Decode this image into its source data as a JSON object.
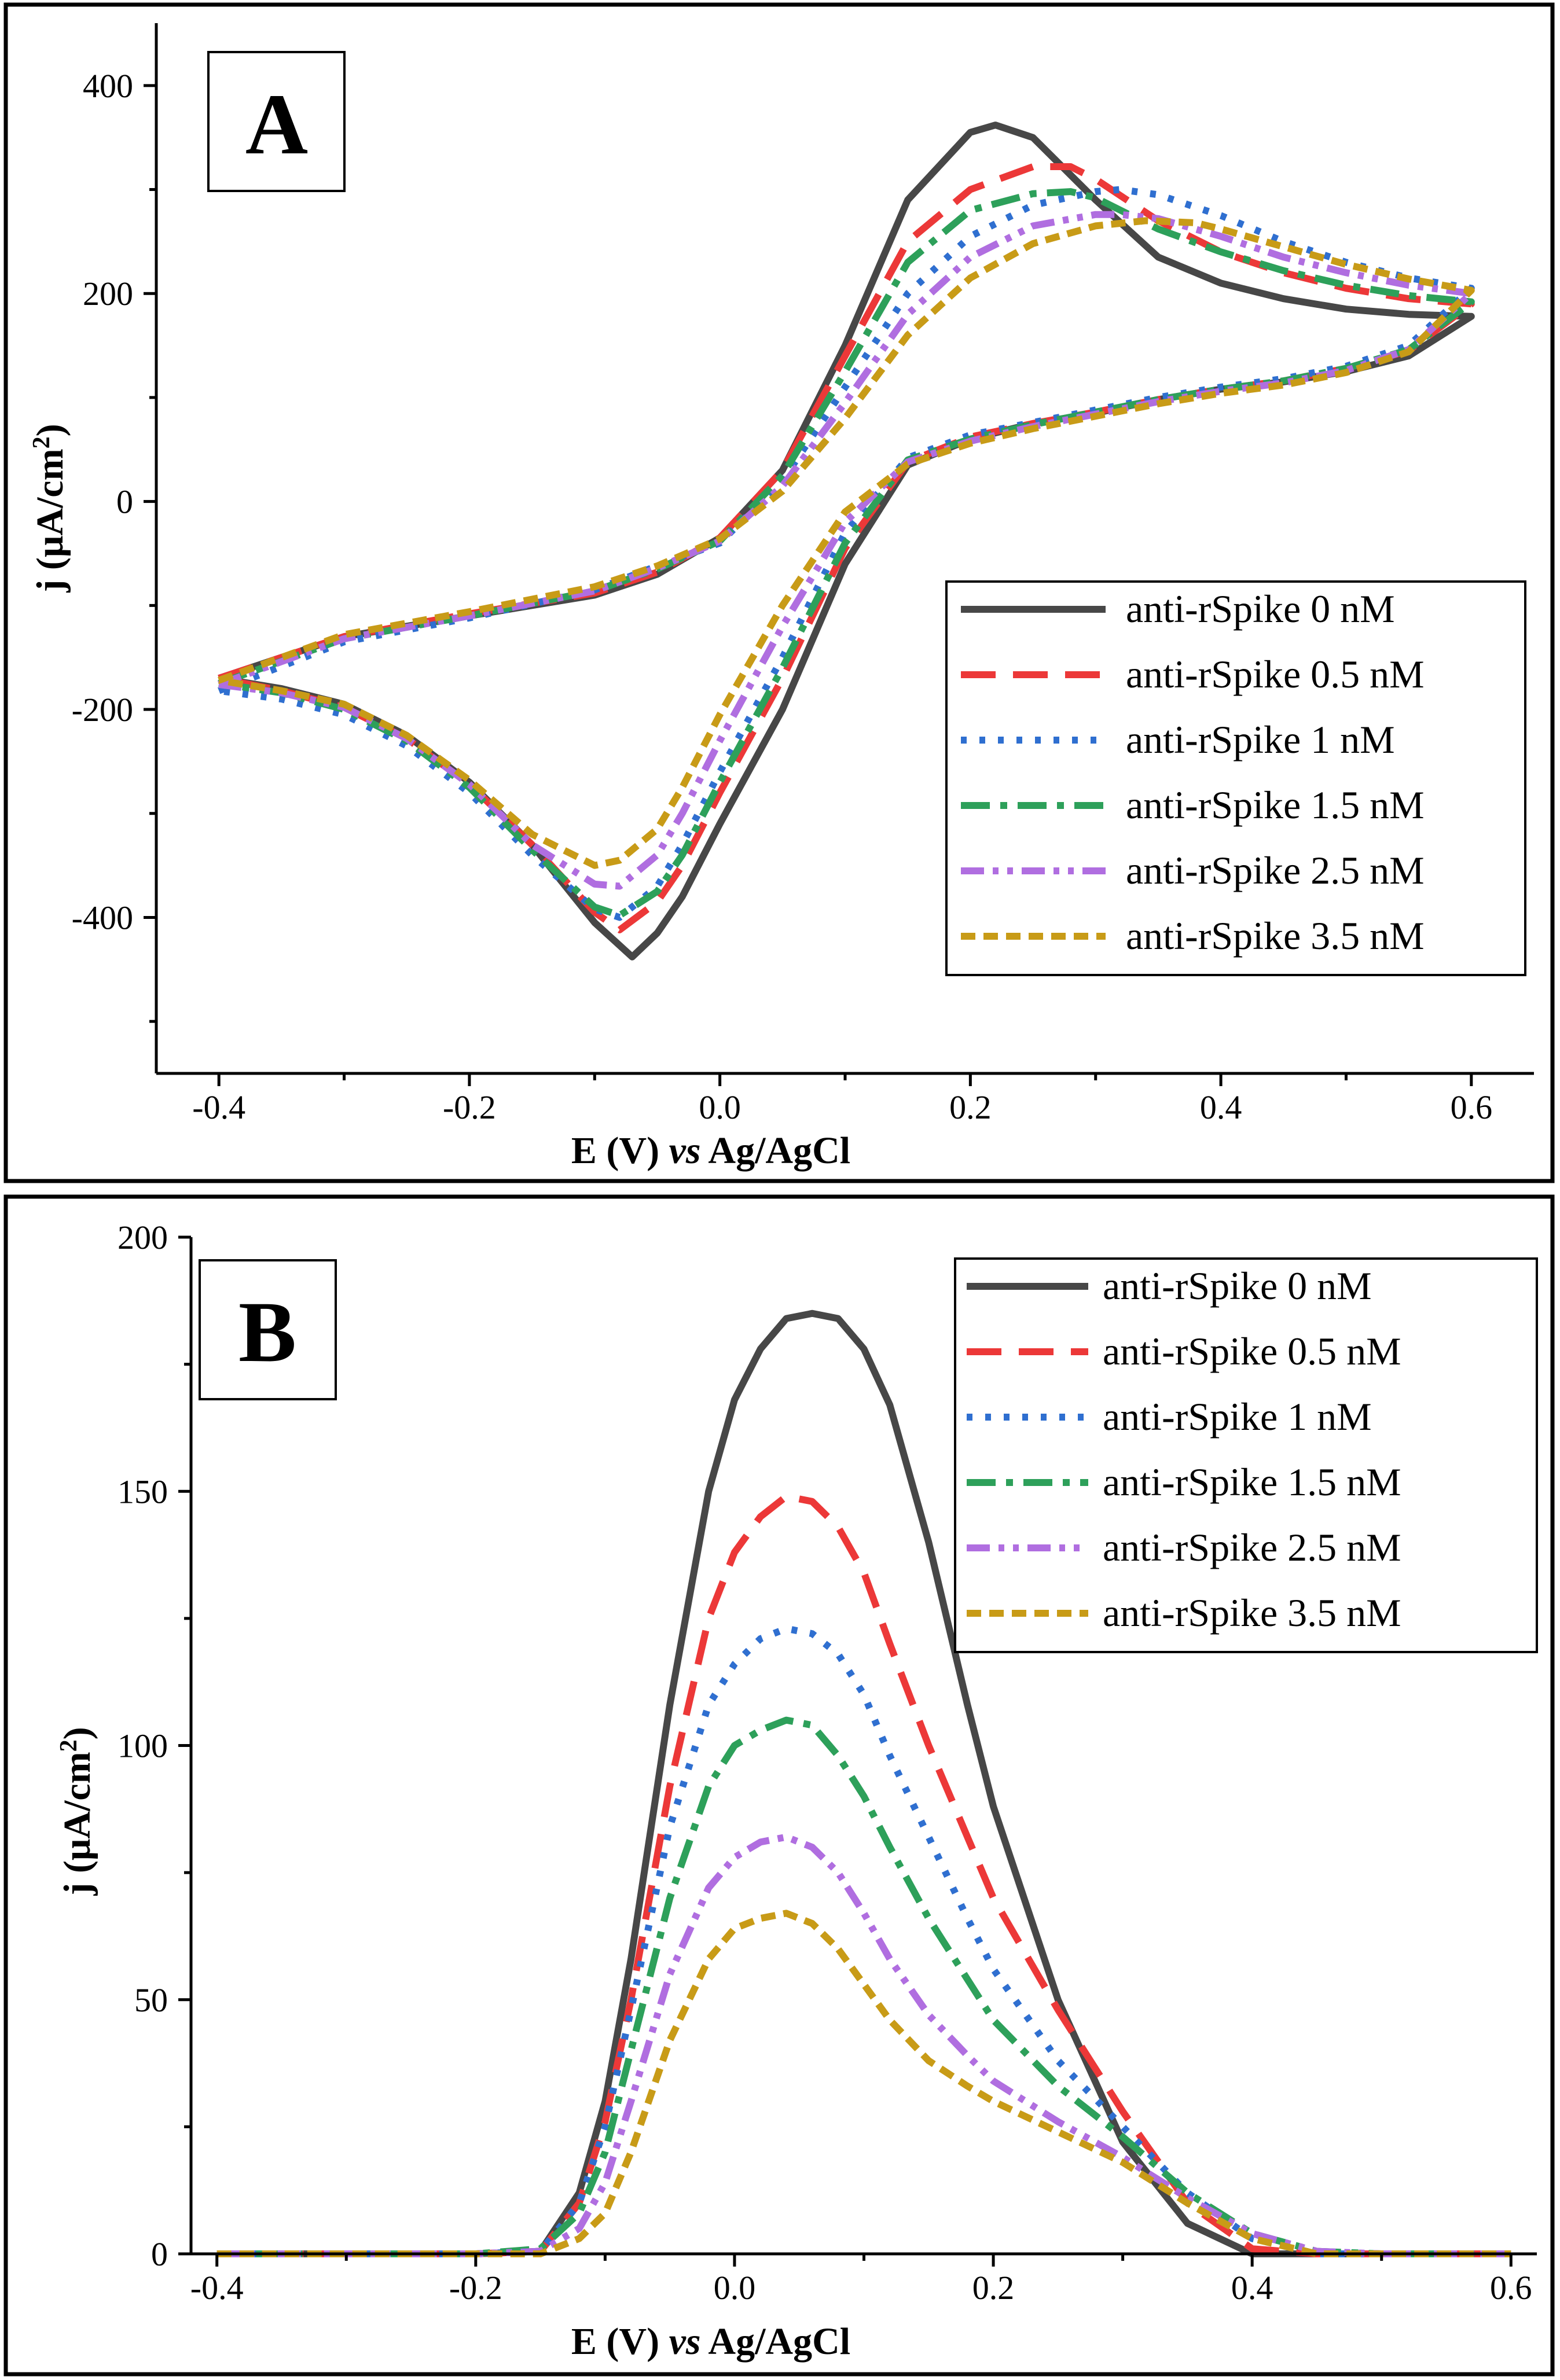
{
  "chart_data": [
    {
      "type": "line",
      "panel_label": "A",
      "xlabel_parts": [
        "E (V) ",
        "vs",
        " Ag/AgCl"
      ],
      "ylabel_parts": [
        "j (μA/cm",
        "2",
        ")"
      ],
      "xlim": [
        -0.45,
        0.65
      ],
      "ylim": [
        -550,
        460
      ],
      "xticks": [
        -0.4,
        -0.2,
        0.0,
        0.2,
        0.4,
        0.6
      ],
      "xtick_labels": [
        "-0.4",
        "-0.2",
        "0.0",
        "0.2",
        "0.4",
        "0.6"
      ],
      "yticks": [
        -400,
        -200,
        0,
        200,
        400
      ],
      "ytick_labels": [
        "-400",
        "-200",
        "0",
        "200",
        "400"
      ],
      "legend_position": "right",
      "series": [
        {
          "name": "anti-rSpike 0 nM",
          "color": "#474747",
          "dash": "solid",
          "x": [
            -0.4,
            -0.3,
            -0.2,
            -0.1,
            -0.05,
            0.0,
            0.05,
            0.1,
            0.15,
            0.2,
            0.22,
            0.25,
            0.3,
            0.35,
            0.4,
            0.45,
            0.5,
            0.55,
            0.6,
            0.6,
            0.55,
            0.5,
            0.45,
            0.4,
            0.35,
            0.3,
            0.25,
            0.2,
            0.15,
            0.1,
            0.05,
            0.0,
            -0.03,
            -0.05,
            -0.07,
            -0.1,
            -0.15,
            -0.2,
            -0.25,
            -0.3,
            -0.35,
            -0.4
          ],
          "y": [
            -170,
            -130,
            -110,
            -90,
            -70,
            -35,
            30,
            150,
            290,
            355,
            362,
            350,
            290,
            235,
            210,
            195,
            185,
            180,
            178,
            178,
            140,
            125,
            115,
            108,
            98,
            85,
            75,
            60,
            35,
            -60,
            -200,
            -310,
            -380,
            -415,
            -438,
            -405,
            -330,
            -270,
            -225,
            -195,
            -180,
            -170
          ]
        },
        {
          "name": "anti-rSpike 0.5 nM",
          "color": "#ec3838",
          "dash": "60,30",
          "x": [
            -0.4,
            -0.3,
            -0.2,
            -0.1,
            -0.05,
            0.0,
            0.05,
            0.1,
            0.15,
            0.2,
            0.25,
            0.28,
            0.3,
            0.35,
            0.4,
            0.45,
            0.5,
            0.55,
            0.6,
            0.6,
            0.55,
            0.5,
            0.45,
            0.4,
            0.35,
            0.3,
            0.25,
            0.2,
            0.15,
            0.1,
            0.05,
            0.0,
            -0.03,
            -0.05,
            -0.08,
            -0.1,
            -0.15,
            -0.2,
            -0.25,
            -0.3,
            -0.35,
            -0.4
          ],
          "y": [
            -170,
            -130,
            -108,
            -88,
            -68,
            -35,
            30,
            140,
            250,
            300,
            322,
            322,
            310,
            270,
            240,
            220,
            205,
            195,
            190,
            190,
            145,
            128,
            116,
            108,
            98,
            86,
            75,
            62,
            38,
            -45,
            -170,
            -280,
            -350,
            -385,
            -412,
            -395,
            -330,
            -272,
            -228,
            -198,
            -182,
            -170
          ]
        },
        {
          "name": "anti-rSpike 1 nM",
          "color": "#2f6fd0",
          "dash": "10,22",
          "x": [
            -0.4,
            -0.3,
            -0.2,
            -0.1,
            -0.05,
            0.0,
            0.05,
            0.1,
            0.15,
            0.2,
            0.25,
            0.3,
            0.32,
            0.35,
            0.4,
            0.45,
            0.5,
            0.55,
            0.6,
            0.6,
            0.55,
            0.5,
            0.45,
            0.4,
            0.35,
            0.3,
            0.25,
            0.2,
            0.15,
            0.1,
            0.05,
            0.0,
            -0.03,
            -0.05,
            -0.08,
            -0.1,
            -0.15,
            -0.2,
            -0.25,
            -0.3,
            -0.35,
            -0.4
          ],
          "y": [
            -182,
            -135,
            -112,
            -85,
            -62,
            -40,
            20,
            110,
            200,
            255,
            285,
            298,
            300,
            295,
            275,
            250,
            230,
            215,
            205,
            205,
            150,
            130,
            118,
            110,
            100,
            88,
            76,
            64,
            42,
            -30,
            -150,
            -260,
            -330,
            -370,
            -400,
            -392,
            -340,
            -280,
            -235,
            -205,
            -190,
            -182
          ]
        },
        {
          "name": "anti-rSpike 1.5 nM",
          "color": "#2da05a",
          "dash": "50,18,12,18",
          "x": [
            -0.4,
            -0.3,
            -0.2,
            -0.1,
            -0.05,
            0.0,
            0.05,
            0.1,
            0.15,
            0.2,
            0.25,
            0.28,
            0.3,
            0.35,
            0.4,
            0.45,
            0.5,
            0.55,
            0.6,
            0.6,
            0.55,
            0.5,
            0.45,
            0.4,
            0.35,
            0.3,
            0.25,
            0.2,
            0.15,
            0.1,
            0.05,
            0.0,
            -0.03,
            -0.05,
            -0.08,
            -0.1,
            -0.15,
            -0.2,
            -0.25,
            -0.3,
            -0.35,
            -0.4
          ],
          "y": [
            -175,
            -132,
            -110,
            -86,
            -65,
            -38,
            25,
            125,
            230,
            280,
            296,
            298,
            292,
            262,
            240,
            222,
            208,
            198,
            192,
            192,
            146,
            128,
            116,
            108,
            98,
            86,
            74,
            60,
            40,
            -40,
            -160,
            -270,
            -340,
            -375,
            -398,
            -390,
            -335,
            -275,
            -230,
            -200,
            -184,
            -175
          ]
        },
        {
          "name": "anti-rSpike 2.5 nM",
          "color": "#b06ee0",
          "dash": "40,15,10,15,10,15",
          "x": [
            -0.4,
            -0.3,
            -0.2,
            -0.1,
            -0.05,
            0.0,
            0.05,
            0.1,
            0.15,
            0.2,
            0.25,
            0.3,
            0.32,
            0.35,
            0.4,
            0.45,
            0.5,
            0.55,
            0.6,
            0.6,
            0.55,
            0.5,
            0.45,
            0.4,
            0.35,
            0.3,
            0.25,
            0.2,
            0.15,
            0.1,
            0.05,
            0.0,
            -0.03,
            -0.05,
            -0.08,
            -0.1,
            -0.15,
            -0.2,
            -0.25,
            -0.3,
            -0.35,
            -0.4
          ],
          "y": [
            -176,
            -132,
            -110,
            -86,
            -64,
            -38,
            15,
            95,
            180,
            235,
            265,
            276,
            276,
            272,
            255,
            235,
            220,
            208,
            200,
            200,
            146,
            126,
            114,
            106,
            96,
            84,
            72,
            58,
            38,
            -20,
            -120,
            -230,
            -300,
            -340,
            -370,
            -368,
            -330,
            -272,
            -228,
            -198,
            -184,
            -176
          ]
        },
        {
          "name": "anti-rSpike 3.5 nM",
          "color": "#c89b17",
          "dash": "25,14",
          "x": [
            -0.4,
            -0.3,
            -0.2,
            -0.1,
            -0.05,
            0.0,
            0.05,
            0.1,
            0.15,
            0.2,
            0.25,
            0.3,
            0.34,
            0.38,
            0.4,
            0.45,
            0.5,
            0.55,
            0.6,
            0.6,
            0.55,
            0.5,
            0.45,
            0.4,
            0.35,
            0.3,
            0.25,
            0.2,
            0.15,
            0.1,
            0.05,
            0.0,
            -0.03,
            -0.05,
            -0.08,
            -0.1,
            -0.15,
            -0.2,
            -0.25,
            -0.3,
            -0.35,
            -0.4
          ],
          "y": [
            -172,
            -128,
            -106,
            -82,
            -62,
            -36,
            10,
            80,
            160,
            215,
            248,
            265,
            270,
            268,
            262,
            245,
            228,
            214,
            203,
            203,
            144,
            124,
            112,
            104,
            94,
            82,
            70,
            56,
            36,
            -10,
            -100,
            -205,
            -275,
            -315,
            -345,
            -350,
            -320,
            -268,
            -225,
            -195,
            -182,
            -172
          ]
        }
      ]
    },
    {
      "type": "line",
      "panel_label": "B",
      "xlabel_parts": [
        "E (V) ",
        "vs",
        " Ag/AgCl"
      ],
      "ylabel_parts": [
        "j (μA/cm",
        "2",
        ")"
      ],
      "xlim": [
        -0.42,
        0.62
      ],
      "ylim": [
        0,
        200
      ],
      "xticks": [
        -0.4,
        -0.2,
        0.0,
        0.2,
        0.4,
        0.6
      ],
      "xtick_labels": [
        "-0.4",
        "-0.2",
        "0.0",
        "0.2",
        "0.4",
        "0.6"
      ],
      "yticks": [
        0,
        50,
        100,
        150,
        200
      ],
      "ytick_labels": [
        "0",
        "50",
        "100",
        "150",
        "200"
      ],
      "legend_position": "top-right",
      "series": [
        {
          "name": "anti-rSpike 0 nM",
          "color": "#474747",
          "dash": "solid",
          "x": [
            -0.4,
            -0.2,
            -0.15,
            -0.12,
            -0.1,
            -0.08,
            -0.05,
            -0.02,
            0.0,
            0.02,
            0.04,
            0.06,
            0.08,
            0.1,
            0.12,
            0.15,
            0.18,
            0.2,
            0.25,
            0.3,
            0.35,
            0.4,
            0.45,
            0.5,
            0.55,
            0.6
          ],
          "y": [
            0,
            0,
            0.5,
            12,
            30,
            58,
            108,
            150,
            168,
            178,
            184,
            185,
            184,
            178,
            167,
            140,
            108,
            88,
            50,
            22,
            6,
            0,
            0,
            0,
            0,
            0
          ]
        },
        {
          "name": "anti-rSpike 0.5 nM",
          "color": "#ec3838",
          "dash": "60,30",
          "x": [
            -0.4,
            -0.2,
            -0.15,
            -0.12,
            -0.1,
            -0.08,
            -0.05,
            -0.02,
            0.0,
            0.02,
            0.04,
            0.06,
            0.08,
            0.1,
            0.12,
            0.15,
            0.18,
            0.2,
            0.25,
            0.3,
            0.35,
            0.4,
            0.45,
            0.5,
            0.55,
            0.6
          ],
          "y": [
            0,
            0,
            0.5,
            10,
            26,
            50,
            92,
            125,
            138,
            145,
            149,
            148,
            143,
            134,
            120,
            100,
            82,
            70,
            48,
            28,
            10,
            1,
            0,
            0,
            0,
            0
          ]
        },
        {
          "name": "anti-rSpike 1 nM",
          "color": "#2f6fd0",
          "dash": "10,22",
          "x": [
            -0.4,
            -0.2,
            -0.15,
            -0.12,
            -0.1,
            -0.08,
            -0.05,
            -0.02,
            0.0,
            0.02,
            0.04,
            0.06,
            0.08,
            0.1,
            0.12,
            0.15,
            0.18,
            0.2,
            0.25,
            0.3,
            0.35,
            0.4,
            0.45,
            0.5,
            0.55,
            0.6
          ],
          "y": [
            0,
            0,
            0.5,
            10,
            25,
            48,
            84,
            108,
            116,
            121,
            123,
            122,
            118,
            110,
            98,
            82,
            66,
            56,
            38,
            25,
            12,
            3,
            0,
            0,
            0,
            0
          ]
        },
        {
          "name": "anti-rSpike 1.5 nM",
          "color": "#2da05a",
          "dash": "50,18,12,18",
          "x": [
            -0.4,
            -0.2,
            -0.15,
            -0.12,
            -0.1,
            -0.08,
            -0.05,
            -0.02,
            0.0,
            0.02,
            0.04,
            0.06,
            0.08,
            0.1,
            0.12,
            0.15,
            0.18,
            0.2,
            0.25,
            0.3,
            0.35,
            0.4,
            0.45,
            0.5,
            0.55,
            0.6
          ],
          "y": [
            0,
            0,
            1,
            8,
            20,
            40,
            70,
            92,
            100,
            103,
            105,
            104,
            98,
            90,
            80,
            66,
            54,
            46,
            33,
            23,
            12,
            4,
            0.5,
            0,
            0,
            0
          ]
        },
        {
          "name": "anti-rSpike 2.5 nM",
          "color": "#b06ee0",
          "dash": "40,15,10,15,10,15",
          "x": [
            -0.4,
            -0.2,
            -0.15,
            -0.12,
            -0.1,
            -0.08,
            -0.05,
            -0.02,
            0.0,
            0.02,
            0.04,
            0.06,
            0.08,
            0.1,
            0.12,
            0.15,
            0.18,
            0.2,
            0.25,
            0.3,
            0.35,
            0.4,
            0.45,
            0.5,
            0.55,
            0.6
          ],
          "y": [
            0,
            0,
            0.5,
            5,
            14,
            30,
            55,
            72,
            78,
            81,
            82,
            80,
            75,
            67,
            58,
            47,
            39,
            34,
            26,
            19,
            11,
            4,
            0.5,
            0,
            0,
            0
          ]
        },
        {
          "name": "anti-rSpike 3.5 nM",
          "color": "#c89b17",
          "dash": "25,14",
          "x": [
            -0.4,
            -0.2,
            -0.15,
            -0.12,
            -0.1,
            -0.08,
            -0.05,
            -0.02,
            0.0,
            0.02,
            0.04,
            0.06,
            0.08,
            0.1,
            0.12,
            0.15,
            0.18,
            0.2,
            0.25,
            0.3,
            0.35,
            0.4,
            0.45,
            0.5,
            0.55,
            0.6
          ],
          "y": [
            0,
            0,
            0,
            3,
            8,
            20,
            42,
            58,
            64,
            66,
            67,
            65,
            60,
            53,
            46,
            38,
            33,
            30,
            24,
            18,
            10,
            3,
            0,
            0,
            0,
            0
          ]
        }
      ]
    }
  ]
}
